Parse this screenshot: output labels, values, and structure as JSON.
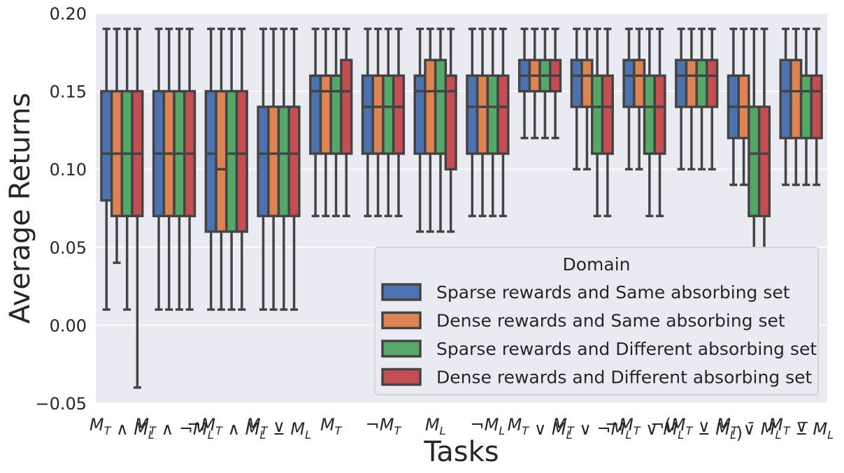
{
  "chart_data": {
    "type": "box",
    "xlabel": "Tasks",
    "ylabel": "Average Returns",
    "ylim": [
      -0.05,
      0.2
    ],
    "yticks": [
      "0.20",
      "0.15",
      "0.10",
      "0.05",
      "0.00",
      "−0.05"
    ],
    "grid": true,
    "legend": {
      "title": "Domain",
      "placement": "lower-right"
    },
    "series": [
      {
        "name": "Sparse rewards and Same absorbing set",
        "color": "#4C72B0"
      },
      {
        "name": "Dense rewards and Same absorbing set",
        "color": "#DD8452"
      },
      {
        "name": "Sparse rewards and Different absorbing set",
        "color": "#55A868"
      },
      {
        "name": "Dense rewards and Different absorbing set",
        "color": "#C44E52"
      }
    ],
    "categories": [
      "M_T ∧ M_L",
      "M_T ∧ ¬M_L",
      "¬M_T ∧ M_L",
      "M_T ⊻ M_L",
      "M_T",
      "¬M_T",
      "M_L",
      "¬M_L",
      "M_T ∨ M_L",
      "M_T ∨ ¬M_L",
      "¬M_T ∨ M_L",
      "¬(M_T ⊻ M_L)",
      "M_T ∨̄ M_L",
      "M_T ⊻̅ M_L"
    ],
    "boxes": [
      [
        [
          0.01,
          0.08,
          0.11,
          0.15,
          0.19
        ],
        [
          0.04,
          0.07,
          0.11,
          0.15,
          0.19
        ],
        [
          0.01,
          0.07,
          0.11,
          0.15,
          0.19
        ],
        [
          -0.04,
          0.07,
          0.11,
          0.15,
          0.19
        ]
      ],
      [
        [
          0.01,
          0.07,
          0.11,
          0.15,
          0.19
        ],
        [
          0.01,
          0.07,
          0.11,
          0.15,
          0.19
        ],
        [
          0.01,
          0.07,
          0.11,
          0.15,
          0.19
        ],
        [
          0.01,
          0.07,
          0.11,
          0.15,
          0.19
        ]
      ],
      [
        [
          0.01,
          0.06,
          0.11,
          0.15,
          0.19
        ],
        [
          0.01,
          0.06,
          0.1,
          0.15,
          0.19
        ],
        [
          0.01,
          0.06,
          0.11,
          0.15,
          0.19
        ],
        [
          0.01,
          0.06,
          0.11,
          0.15,
          0.19
        ]
      ],
      [
        [
          0.01,
          0.07,
          0.11,
          0.14,
          0.19
        ],
        [
          0.01,
          0.07,
          0.11,
          0.14,
          0.19
        ],
        [
          0.01,
          0.07,
          0.11,
          0.14,
          0.19
        ],
        [
          0.01,
          0.07,
          0.11,
          0.14,
          0.19
        ]
      ],
      [
        [
          0.07,
          0.11,
          0.15,
          0.16,
          0.19
        ],
        [
          0.07,
          0.11,
          0.15,
          0.16,
          0.19
        ],
        [
          0.07,
          0.11,
          0.15,
          0.16,
          0.19
        ],
        [
          0.07,
          0.11,
          0.15,
          0.17,
          0.19
        ]
      ],
      [
        [
          0.07,
          0.11,
          0.14,
          0.16,
          0.19
        ],
        [
          0.07,
          0.11,
          0.14,
          0.16,
          0.19
        ],
        [
          0.07,
          0.11,
          0.14,
          0.16,
          0.19
        ],
        [
          0.07,
          0.11,
          0.14,
          0.16,
          0.19
        ]
      ],
      [
        [
          0.06,
          0.11,
          0.15,
          0.16,
          0.19
        ],
        [
          0.06,
          0.11,
          0.15,
          0.17,
          0.19
        ],
        [
          0.06,
          0.11,
          0.15,
          0.17,
          0.19
        ],
        [
          0.06,
          0.1,
          0.15,
          0.16,
          0.19
        ]
      ],
      [
        [
          0.07,
          0.11,
          0.14,
          0.16,
          0.19
        ],
        [
          0.07,
          0.11,
          0.14,
          0.16,
          0.19
        ],
        [
          0.07,
          0.11,
          0.14,
          0.16,
          0.19
        ],
        [
          0.07,
          0.11,
          0.14,
          0.16,
          0.19
        ]
      ],
      [
        [
          0.12,
          0.15,
          0.16,
          0.17,
          0.19
        ],
        [
          0.12,
          0.15,
          0.16,
          0.17,
          0.19
        ],
        [
          0.12,
          0.15,
          0.16,
          0.17,
          0.19
        ],
        [
          0.12,
          0.15,
          0.16,
          0.17,
          0.19
        ]
      ],
      [
        [
          0.1,
          0.14,
          0.16,
          0.17,
          0.19
        ],
        [
          0.1,
          0.14,
          0.16,
          0.17,
          0.19
        ],
        [
          0.07,
          0.11,
          0.14,
          0.16,
          0.19
        ],
        [
          0.07,
          0.11,
          0.14,
          0.16,
          0.19
        ]
      ],
      [
        [
          0.1,
          0.14,
          0.16,
          0.17,
          0.19
        ],
        [
          0.1,
          0.14,
          0.16,
          0.17,
          0.19
        ],
        [
          0.07,
          0.11,
          0.14,
          0.16,
          0.19
        ],
        [
          0.07,
          0.11,
          0.14,
          0.16,
          0.19
        ]
      ],
      [
        [
          0.1,
          0.14,
          0.16,
          0.17,
          0.19
        ],
        [
          0.1,
          0.14,
          0.16,
          0.17,
          0.19
        ],
        [
          0.1,
          0.14,
          0.16,
          0.17,
          0.19
        ],
        [
          0.1,
          0.14,
          0.16,
          0.17,
          0.19
        ]
      ],
      [
        [
          0.09,
          0.12,
          0.14,
          0.16,
          0.19
        ],
        [
          0.09,
          0.12,
          0.14,
          0.16,
          0.19
        ],
        [
          0.01,
          0.07,
          0.11,
          0.14,
          0.19
        ],
        [
          0.01,
          0.07,
          0.11,
          0.14,
          0.19
        ]
      ],
      [
        [
          0.09,
          0.12,
          0.15,
          0.17,
          0.19
        ],
        [
          0.09,
          0.12,
          0.15,
          0.17,
          0.19
        ],
        [
          0.09,
          0.12,
          0.15,
          0.16,
          0.19
        ],
        [
          0.09,
          0.12,
          0.15,
          0.16,
          0.19
        ]
      ]
    ]
  }
}
